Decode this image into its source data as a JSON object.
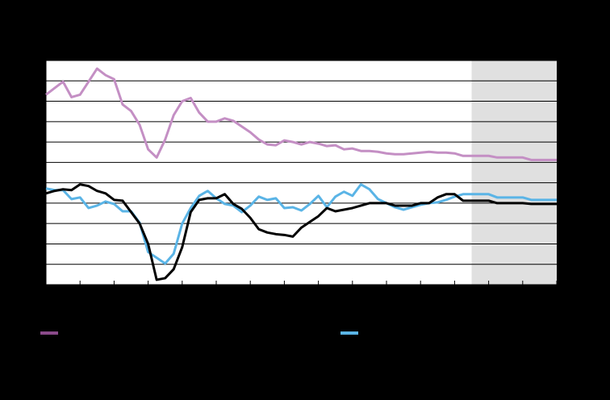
{
  "chart_data": {
    "type": "line",
    "x": [
      0,
      1,
      2,
      3,
      4,
      5,
      6,
      7,
      8,
      9,
      10,
      11,
      12,
      13,
      14,
      15,
      16,
      17,
      18,
      19,
      20,
      21,
      22,
      23,
      24,
      25,
      26,
      27,
      28,
      29,
      30,
      31,
      32,
      33,
      34,
      35,
      36,
      37,
      38,
      39,
      40,
      41,
      42,
      43,
      44,
      45,
      46,
      47,
      48,
      49,
      50,
      51,
      52,
      53,
      54,
      55,
      56,
      57,
      58,
      59,
      60
    ],
    "xlim": [
      0,
      60
    ],
    "xticks": [
      0,
      4,
      8,
      12,
      16,
      20,
      24,
      28,
      32,
      36,
      40,
      44,
      48,
      52,
      56,
      60
    ],
    "ylim": [
      0,
      275
    ],
    "yticks": [
      0,
      25,
      50,
      75,
      100,
      125,
      150,
      175,
      200,
      225,
      250,
      275
    ],
    "grid": true,
    "shaded_x_range": [
      50,
      60
    ],
    "shade_color": "#e0e0e0",
    "series": [
      {
        "color": "#c48fc4",
        "legend_color": "#8a4a8a",
        "values": [
          233,
          241,
          249,
          230,
          233,
          249,
          265,
          257,
          252,
          221,
          213,
          196,
          166,
          156,
          178,
          208,
          225,
          229,
          211,
          200,
          200,
          204,
          201,
          194,
          187,
          178,
          172,
          171,
          177,
          175,
          172,
          175,
          173,
          170,
          171,
          166,
          167,
          164,
          164,
          163,
          161,
          160,
          160,
          161,
          162,
          163,
          162,
          162,
          161,
          158,
          158,
          158,
          158,
          156,
          156,
          156,
          156,
          153,
          153,
          153,
          153
        ]
      },
      {
        "color": "#5ab4e6",
        "legend_color": "#5ab4e6",
        "values": [
          118,
          116,
          116,
          105,
          107,
          94,
          97,
          102,
          99,
          90,
          90,
          76,
          40,
          33,
          26,
          38,
          75,
          94,
          109,
          115,
          106,
          99,
          97,
          89,
          97,
          108,
          104,
          106,
          94,
          95,
          91,
          99,
          109,
          95,
          108,
          114,
          109,
          123,
          117,
          105,
          100,
          95,
          92,
          95,
          98,
          100,
          101,
          104,
          108,
          111,
          111,
          111,
          111,
          107,
          107,
          107,
          107,
          104,
          104,
          104,
          104
        ]
      },
      {
        "color": "#000000",
        "legend_color": "#000000",
        "values": [
          112,
          115,
          117,
          116,
          123,
          121,
          115,
          112,
          104,
          103,
          89,
          75,
          50,
          6,
          8,
          19,
          46,
          89,
          104,
          106,
          106,
          111,
          99,
          93,
          82,
          68,
          64,
          62,
          61,
          59,
          70,
          77,
          84,
          94,
          90,
          92,
          94,
          97,
          100,
          100,
          100,
          97,
          97,
          97,
          100,
          100,
          107,
          111,
          111,
          103,
          103,
          103,
          103,
          100,
          100,
          100,
          100,
          99,
          99,
          99,
          99
        ]
      }
    ]
  }
}
